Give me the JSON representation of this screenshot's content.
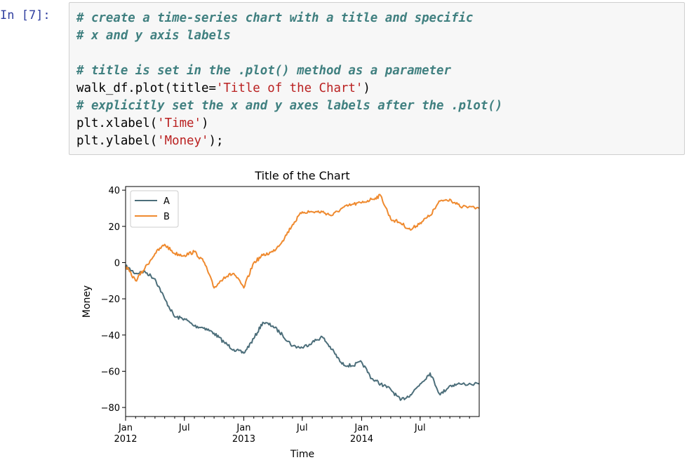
{
  "cell": {
    "prompt": "In [7]:",
    "code_lines": [
      [
        {
          "t": "# create a time-series chart with a title and specific",
          "k": "c"
        }
      ],
      [
        {
          "t": "# x and y axis labels",
          "k": "c"
        }
      ],
      [],
      [
        {
          "t": "# title is set in the .plot() method as a parameter",
          "k": "c"
        }
      ],
      [
        {
          "t": "walk_df.plot(title=",
          "k": ""
        },
        {
          "t": "'Title of the Chart'",
          "k": "s"
        },
        {
          "t": ")",
          "k": ""
        }
      ],
      [
        {
          "t": "# explicitly set the x and y axes labels after the .plot()",
          "k": "c"
        }
      ],
      [
        {
          "t": "plt.xlabel(",
          "k": ""
        },
        {
          "t": "'Time'",
          "k": "s"
        },
        {
          "t": ")",
          "k": ""
        }
      ],
      [
        {
          "t": "plt.ylabel(",
          "k": ""
        },
        {
          "t": "'Money'",
          "k": "s"
        },
        {
          "t": ");",
          "k": ""
        }
      ]
    ]
  },
  "chart_data": {
    "type": "line",
    "title": "Title of the Chart",
    "xlabel": "Time",
    "ylabel": "Money",
    "xlim": [
      "2012-01-01",
      "2014-12-31"
    ],
    "ylim": [
      -85,
      42
    ],
    "grid": false,
    "legend": "top-left",
    "x_ticks": [
      {
        "date": "2012-01-01",
        "line1": "Jan",
        "line2": "2012"
      },
      {
        "date": "2012-07-01",
        "line1": "Jul",
        "line2": ""
      },
      {
        "date": "2013-01-01",
        "line1": "Jan",
        "line2": "2013"
      },
      {
        "date": "2013-07-01",
        "line1": "Jul",
        "line2": ""
      },
      {
        "date": "2014-01-01",
        "line1": "Jan",
        "line2": "2014"
      },
      {
        "date": "2014-07-01",
        "line1": "Jul",
        "line2": ""
      }
    ],
    "y_ticks": [
      40,
      20,
      0,
      -20,
      -40,
      -60,
      -80
    ],
    "series": [
      {
        "name": "A",
        "color": "#4c6e7a",
        "x": [
          "2012-01-01",
          "2012-02-01",
          "2012-03-01",
          "2012-04-01",
          "2012-05-01",
          "2012-06-01",
          "2012-07-01",
          "2012-08-01",
          "2012-09-01",
          "2012-10-01",
          "2012-11-01",
          "2012-12-01",
          "2013-01-01",
          "2013-02-01",
          "2013-03-01",
          "2013-04-01",
          "2013-05-01",
          "2013-06-01",
          "2013-07-01",
          "2013-08-01",
          "2013-09-01",
          "2013-10-01",
          "2013-11-01",
          "2013-12-01",
          "2014-01-01",
          "2014-02-01",
          "2014-03-01",
          "2014-04-01",
          "2014-05-01",
          "2014-06-01",
          "2014-07-01",
          "2014-08-01",
          "2014-09-01",
          "2014-10-01",
          "2014-11-01",
          "2014-12-31"
        ],
        "values": [
          -2,
          -6,
          -5,
          -9,
          -20,
          -30,
          -31,
          -35,
          -36,
          -39,
          -44,
          -48,
          -50,
          -42,
          -33,
          -35,
          -40,
          -46,
          -47,
          -44,
          -41,
          -48,
          -56,
          -57,
          -55,
          -64,
          -67,
          -70,
          -76,
          -73,
          -67,
          -61,
          -73,
          -68,
          -67,
          -67
        ]
      },
      {
        "name": "B",
        "color": "#ef8a2f",
        "x": [
          "2012-01-01",
          "2012-02-01",
          "2012-03-01",
          "2012-04-01",
          "2012-05-01",
          "2012-06-01",
          "2012-07-01",
          "2012-08-01",
          "2012-09-01",
          "2012-10-01",
          "2012-11-01",
          "2012-12-01",
          "2013-01-01",
          "2013-02-01",
          "2013-03-01",
          "2013-04-01",
          "2013-05-01",
          "2013-06-01",
          "2013-07-01",
          "2013-08-01",
          "2013-09-01",
          "2013-10-01",
          "2013-11-01",
          "2013-12-01",
          "2014-01-01",
          "2014-02-01",
          "2014-03-01",
          "2014-04-01",
          "2014-05-01",
          "2014-06-01",
          "2014-07-01",
          "2014-08-01",
          "2014-09-01",
          "2014-10-01",
          "2014-11-01",
          "2014-12-31"
        ],
        "values": [
          -2,
          -10,
          -3,
          5,
          10,
          5,
          4,
          6,
          0,
          -14,
          -8,
          -6,
          -14,
          0,
          4,
          6,
          12,
          21,
          28,
          28,
          28,
          26,
          30,
          32,
          33,
          35,
          37,
          24,
          22,
          18,
          22,
          26,
          34,
          35,
          31,
          30
        ]
      }
    ]
  }
}
